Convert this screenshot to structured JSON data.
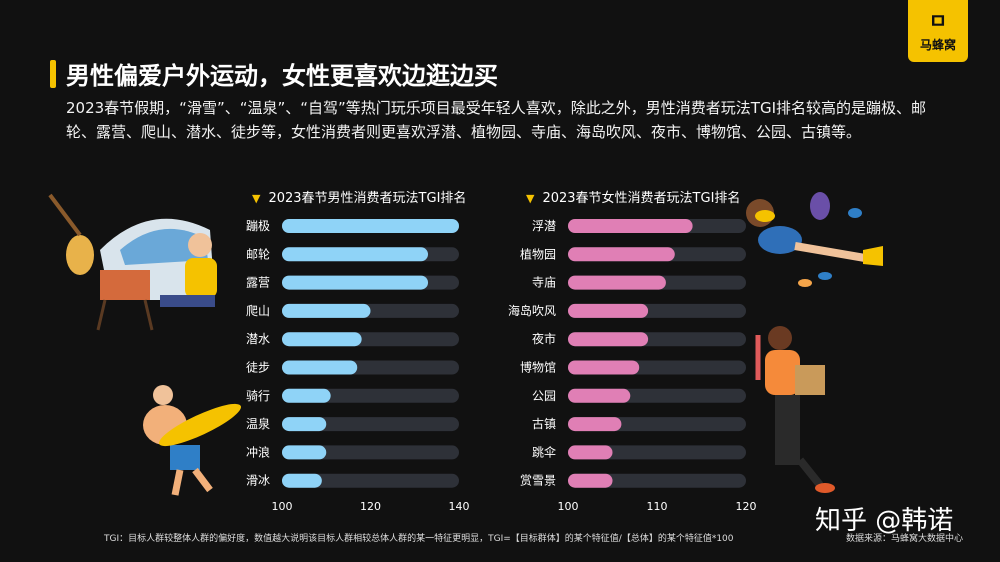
{
  "header": {
    "title": "男性偏爱户外运动，女性更喜欢边逛边买",
    "description": "2023春节假期，“滑雪”、“温泉”、“自驾”等热门玩乐项目最受年轻人喜欢，除此之外，男性消费者玩法TGI排名较高的是蹦极、邮轮、露营、爬山、潜水、徒步等，女性消费者则更喜欢浮潜、植物园、寺庙、海岛吹风、夜市、博物馆、公园、古镇等。"
  },
  "logo": {
    "mark": "ㅁ",
    "name": "马蜂窝"
  },
  "colors": {
    "male_bar": "#8fd3f7",
    "female_bar": "#e07fb5",
    "track": "#2e3138",
    "accent": "#f5c200"
  },
  "chart_data": [
    {
      "type": "bar",
      "orientation": "horizontal",
      "title": "2023春节男性消费者玩法TGI排名",
      "categories": [
        "蹦极",
        "邮轮",
        "露营",
        "爬山",
        "潜水",
        "徒步",
        "骑行",
        "温泉",
        "冲浪",
        "滑冰"
      ],
      "values": [
        140,
        133,
        133,
        120,
        118,
        117,
        111,
        110,
        110,
        109
      ],
      "xlim": [
        100,
        140
      ],
      "xticks": [
        "100",
        "120",
        "140"
      ],
      "track_max": 140,
      "grid": false
    },
    {
      "type": "bar",
      "orientation": "horizontal",
      "title": "2023春节女性消费者玩法TGI排名",
      "categories": [
        "浮潜",
        "植物园",
        "寺庙",
        "海岛吹风",
        "夜市",
        "博物馆",
        "公园",
        "古镇",
        "跳伞",
        "赏雪景"
      ],
      "values": [
        114,
        112,
        111,
        109,
        109,
        108,
        107,
        106,
        105,
        105
      ],
      "xlim": [
        100,
        120
      ],
      "xticks": [
        "100",
        "110",
        "120"
      ],
      "track_max": 120,
      "grid": false
    }
  ],
  "footnote": "TGI：目标人群较整体人群的偏好度，数值越大说明该目标人群相较总体人群的某一特征更明显，TGI=【目标群体】的某个特征值/【总体】的某个特征值*100",
  "source": "数据来源：马蜂窝大数据中心",
  "watermark": "知乎 @韩诺",
  "icons": [
    "chevron-down-icon"
  ]
}
